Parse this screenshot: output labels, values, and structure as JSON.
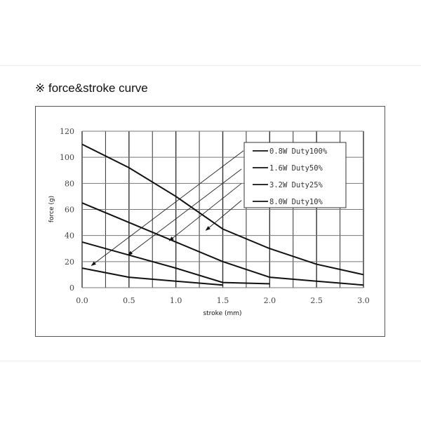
{
  "title": "※ force&stroke curve",
  "chart_data": {
    "type": "line",
    "title": "",
    "xlabel": "stroke (mm)",
    "ylabel": "force (g)",
    "xlim": [
      0,
      3.0
    ],
    "ylim": [
      0,
      120
    ],
    "xticks": [
      "0.0",
      "0.5",
      "1.0",
      "1.5",
      "2.0",
      "2.5",
      "3.0"
    ],
    "yticks": [
      "0",
      "20",
      "40",
      "60",
      "80",
      "100",
      "120"
    ],
    "grid": true,
    "legend_position": "top-right",
    "series": [
      {
        "name": "0.8W Duty100%",
        "x": [
          0,
          0.5,
          1.0,
          1.5,
          2.0,
          2.5,
          3.0
        ],
        "y": [
          110,
          92,
          70,
          45,
          30,
          18,
          10
        ]
      },
      {
        "name": "1.6W Duty50%",
        "x": [
          0,
          0.5,
          1.0,
          1.5,
          2.0,
          2.5,
          3.0
        ],
        "y": [
          65,
          50,
          35,
          20,
          8,
          5,
          2
        ]
      },
      {
        "name": "3.2W Duty25%",
        "x": [
          0,
          0.5,
          1.0,
          1.5,
          2.0
        ],
        "y": [
          35,
          25,
          15,
          4,
          3
        ]
      },
      {
        "name": "8.0W Duty10%",
        "x": [
          0,
          0.5,
          1.0,
          1.5
        ],
        "y": [
          15,
          8,
          5,
          2
        ]
      }
    ],
    "annotations": [
      {
        "type": "arrow",
        "from": [
          1.72,
          105
        ],
        "to": [
          0.1,
          17
        ]
      },
      {
        "type": "arrow",
        "from": [
          1.7,
          91
        ],
        "to": [
          0.49,
          25
        ]
      },
      {
        "type": "arrow",
        "from": [
          1.7,
          80
        ],
        "to": [
          0.93,
          36
        ]
      },
      {
        "type": "arrow",
        "from": [
          1.7,
          67
        ],
        "to": [
          1.32,
          44
        ]
      }
    ],
    "colors": {
      "line": "#111111",
      "grid": "#333333"
    }
  }
}
